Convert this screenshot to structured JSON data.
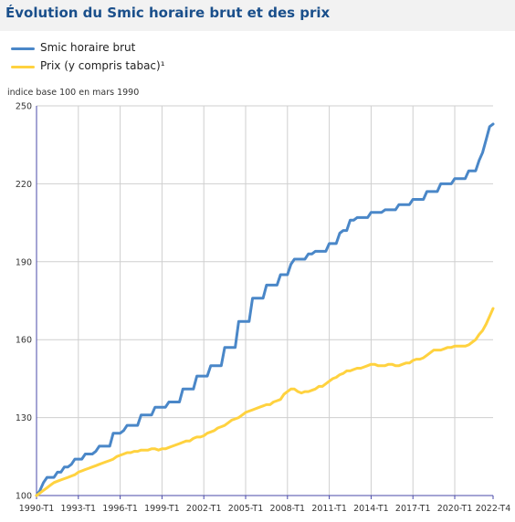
{
  "title": "Évolution du Smic horaire brut et des prix",
  "colors": {
    "smic": "#4a87c8",
    "prix": "#ffd23f",
    "grid": "#cfcfcf",
    "axis": "#4a4aa8"
  },
  "legend": [
    {
      "key": "smic",
      "label": "Smic horaire brut"
    },
    {
      "key": "prix",
      "label": "Prix (y compris tabac)¹"
    }
  ],
  "chart_data": {
    "type": "line",
    "ylabel": "indice base 100 en mars 1990",
    "xlabel": "",
    "grid": true,
    "legend_position": "top-left",
    "ylim": [
      100,
      250
    ],
    "xlim": [
      1990.0,
      2022.75
    ],
    "y_ticks": [
      100,
      130,
      160,
      190,
      220,
      250
    ],
    "x_ticks": [
      {
        "label": "1990-T1",
        "value": 1990.0
      },
      {
        "label": "1993-T1",
        "value": 1993.0
      },
      {
        "label": "1996-T1",
        "value": 1996.0
      },
      {
        "label": "1999-T1",
        "value": 1999.0
      },
      {
        "label": "2002-T1",
        "value": 2002.0
      },
      {
        "label": "2005-T1",
        "value": 2005.0
      },
      {
        "label": "2008-T1",
        "value": 2008.0
      },
      {
        "label": "2011-T1",
        "value": 2011.0
      },
      {
        "label": "2014-T1",
        "value": 2014.0
      },
      {
        "label": "2017-T1",
        "value": 2017.0
      },
      {
        "label": "2020-T1",
        "value": 2020.0
      },
      {
        "label": "2022-T4",
        "value": 2022.75
      }
    ],
    "series": [
      {
        "name": "Smic horaire brut",
        "key": "smic",
        "points": [
          [
            1990.0,
            100
          ],
          [
            1990.25,
            102
          ],
          [
            1990.5,
            105
          ],
          [
            1990.75,
            107
          ],
          [
            1991.0,
            107
          ],
          [
            1991.25,
            107
          ],
          [
            1991.5,
            109
          ],
          [
            1991.75,
            109
          ],
          [
            1992.0,
            111
          ],
          [
            1992.25,
            111
          ],
          [
            1992.5,
            112
          ],
          [
            1992.75,
            114
          ],
          [
            1993.0,
            114
          ],
          [
            1993.25,
            114
          ],
          [
            1993.5,
            116
          ],
          [
            1993.75,
            116
          ],
          [
            1994.0,
            116
          ],
          [
            1994.25,
            117
          ],
          [
            1994.5,
            119
          ],
          [
            1994.75,
            119
          ],
          [
            1995.0,
            119
          ],
          [
            1995.25,
            119
          ],
          [
            1995.5,
            124
          ],
          [
            1995.75,
            124
          ],
          [
            1996.0,
            124
          ],
          [
            1996.25,
            125
          ],
          [
            1996.5,
            127
          ],
          [
            1996.75,
            127
          ],
          [
            1997.0,
            127
          ],
          [
            1997.25,
            127
          ],
          [
            1997.5,
            131
          ],
          [
            1997.75,
            131
          ],
          [
            1998.0,
            131
          ],
          [
            1998.25,
            131
          ],
          [
            1998.5,
            134
          ],
          [
            1998.75,
            134
          ],
          [
            1999.0,
            134
          ],
          [
            1999.25,
            134
          ],
          [
            1999.5,
            136
          ],
          [
            1999.75,
            136
          ],
          [
            2000.0,
            136
          ],
          [
            2000.25,
            136
          ],
          [
            2000.5,
            141
          ],
          [
            2000.75,
            141
          ],
          [
            2001.0,
            141
          ],
          [
            2001.25,
            141
          ],
          [
            2001.5,
            146
          ],
          [
            2001.75,
            146
          ],
          [
            2002.0,
            146
          ],
          [
            2002.25,
            146
          ],
          [
            2002.5,
            150
          ],
          [
            2002.75,
            150
          ],
          [
            2003.0,
            150
          ],
          [
            2003.25,
            150
          ],
          [
            2003.5,
            157
          ],
          [
            2003.75,
            157
          ],
          [
            2004.0,
            157
          ],
          [
            2004.25,
            157
          ],
          [
            2004.5,
            167
          ],
          [
            2004.75,
            167
          ],
          [
            2005.0,
            167
          ],
          [
            2005.25,
            167
          ],
          [
            2005.5,
            176
          ],
          [
            2005.75,
            176
          ],
          [
            2006.0,
            176
          ],
          [
            2006.25,
            176
          ],
          [
            2006.5,
            181
          ],
          [
            2006.75,
            181
          ],
          [
            2007.0,
            181
          ],
          [
            2007.25,
            181
          ],
          [
            2007.5,
            185
          ],
          [
            2007.75,
            185
          ],
          [
            2008.0,
            185
          ],
          [
            2008.25,
            189
          ],
          [
            2008.5,
            191
          ],
          [
            2008.75,
            191
          ],
          [
            2009.0,
            191
          ],
          [
            2009.25,
            191
          ],
          [
            2009.5,
            193
          ],
          [
            2009.75,
            193
          ],
          [
            2010.0,
            194
          ],
          [
            2010.25,
            194
          ],
          [
            2010.5,
            194
          ],
          [
            2010.75,
            194
          ],
          [
            2011.0,
            197
          ],
          [
            2011.25,
            197
          ],
          [
            2011.5,
            197
          ],
          [
            2011.75,
            201
          ],
          [
            2012.0,
            202
          ],
          [
            2012.25,
            202
          ],
          [
            2012.5,
            206
          ],
          [
            2012.75,
            206
          ],
          [
            2013.0,
            207
          ],
          [
            2013.25,
            207
          ],
          [
            2013.5,
            207
          ],
          [
            2013.75,
            207
          ],
          [
            2014.0,
            209
          ],
          [
            2014.25,
            209
          ],
          [
            2014.5,
            209
          ],
          [
            2014.75,
            209
          ],
          [
            2015.0,
            210
          ],
          [
            2015.25,
            210
          ],
          [
            2015.5,
            210
          ],
          [
            2015.75,
            210
          ],
          [
            2016.0,
            212
          ],
          [
            2016.25,
            212
          ],
          [
            2016.5,
            212
          ],
          [
            2016.75,
            212
          ],
          [
            2017.0,
            214
          ],
          [
            2017.25,
            214
          ],
          [
            2017.5,
            214
          ],
          [
            2017.75,
            214
          ],
          [
            2018.0,
            217
          ],
          [
            2018.25,
            217
          ],
          [
            2018.5,
            217
          ],
          [
            2018.75,
            217
          ],
          [
            2019.0,
            220
          ],
          [
            2019.25,
            220
          ],
          [
            2019.5,
            220
          ],
          [
            2019.75,
            220
          ],
          [
            2020.0,
            222
          ],
          [
            2020.25,
            222
          ],
          [
            2020.5,
            222
          ],
          [
            2020.75,
            222
          ],
          [
            2021.0,
            225
          ],
          [
            2021.25,
            225
          ],
          [
            2021.5,
            225
          ],
          [
            2021.75,
            229
          ],
          [
            2022.0,
            232
          ],
          [
            2022.25,
            237
          ],
          [
            2022.5,
            242
          ],
          [
            2022.75,
            243
          ]
        ]
      },
      {
        "name": "Prix (y compris tabac)¹",
        "key": "prix",
        "points": [
          [
            1990.0,
            100
          ],
          [
            1990.25,
            101
          ],
          [
            1990.5,
            102
          ],
          [
            1990.75,
            103
          ],
          [
            1991.0,
            104
          ],
          [
            1991.25,
            105
          ],
          [
            1991.5,
            105.5
          ],
          [
            1991.75,
            106
          ],
          [
            1992.0,
            106.5
          ],
          [
            1992.25,
            107
          ],
          [
            1992.5,
            107.5
          ],
          [
            1992.75,
            108
          ],
          [
            1993.0,
            109
          ],
          [
            1993.25,
            109.5
          ],
          [
            1993.5,
            110
          ],
          [
            1993.75,
            110.5
          ],
          [
            1994.0,
            111
          ],
          [
            1994.25,
            111.5
          ],
          [
            1994.5,
            112
          ],
          [
            1994.75,
            112.5
          ],
          [
            1995.0,
            113
          ],
          [
            1995.25,
            113.5
          ],
          [
            1995.5,
            114
          ],
          [
            1995.75,
            115
          ],
          [
            1996.0,
            115.5
          ],
          [
            1996.25,
            116
          ],
          [
            1996.5,
            116.5
          ],
          [
            1996.75,
            116.5
          ],
          [
            1997.0,
            117
          ],
          [
            1997.25,
            117
          ],
          [
            1997.5,
            117.5
          ],
          [
            1997.75,
            117.5
          ],
          [
            1998.0,
            117.5
          ],
          [
            1998.25,
            118
          ],
          [
            1998.5,
            118
          ],
          [
            1998.75,
            117.5
          ],
          [
            1999.0,
            118
          ],
          [
            1999.25,
            118
          ],
          [
            1999.5,
            118.5
          ],
          [
            1999.75,
            119
          ],
          [
            2000.0,
            119.5
          ],
          [
            2000.25,
            120
          ],
          [
            2000.5,
            120.5
          ],
          [
            2000.75,
            121
          ],
          [
            2001.0,
            121
          ],
          [
            2001.25,
            122
          ],
          [
            2001.5,
            122.5
          ],
          [
            2001.75,
            122.5
          ],
          [
            2002.0,
            123
          ],
          [
            2002.25,
            124
          ],
          [
            2002.5,
            124.5
          ],
          [
            2002.75,
            125
          ],
          [
            2003.0,
            126
          ],
          [
            2003.25,
            126.5
          ],
          [
            2003.5,
            127
          ],
          [
            2003.75,
            128
          ],
          [
            2004.0,
            129
          ],
          [
            2004.25,
            129.5
          ],
          [
            2004.5,
            130
          ],
          [
            2004.75,
            131
          ],
          [
            2005.0,
            132
          ],
          [
            2005.25,
            132.5
          ],
          [
            2005.5,
            133
          ],
          [
            2005.75,
            133.5
          ],
          [
            2006.0,
            134
          ],
          [
            2006.25,
            134.5
          ],
          [
            2006.5,
            135
          ],
          [
            2006.75,
            135
          ],
          [
            2007.0,
            136
          ],
          [
            2007.25,
            136.5
          ],
          [
            2007.5,
            137
          ],
          [
            2007.75,
            139
          ],
          [
            2008.0,
            140
          ],
          [
            2008.25,
            141
          ],
          [
            2008.5,
            141
          ],
          [
            2008.75,
            140
          ],
          [
            2009.0,
            139.5
          ],
          [
            2009.25,
            140
          ],
          [
            2009.5,
            140
          ],
          [
            2009.75,
            140.5
          ],
          [
            2010.0,
            141
          ],
          [
            2010.25,
            142
          ],
          [
            2010.5,
            142
          ],
          [
            2010.75,
            143
          ],
          [
            2011.0,
            144
          ],
          [
            2011.25,
            145
          ],
          [
            2011.5,
            145.5
          ],
          [
            2011.75,
            146.5
          ],
          [
            2012.0,
            147
          ],
          [
            2012.25,
            148
          ],
          [
            2012.5,
            148
          ],
          [
            2012.75,
            148.5
          ],
          [
            2013.0,
            149
          ],
          [
            2013.25,
            149
          ],
          [
            2013.5,
            149.5
          ],
          [
            2013.75,
            150
          ],
          [
            2014.0,
            150.5
          ],
          [
            2014.25,
            150.5
          ],
          [
            2014.5,
            150
          ],
          [
            2014.75,
            150
          ],
          [
            2015.0,
            150
          ],
          [
            2015.25,
            150.5
          ],
          [
            2015.5,
            150.5
          ],
          [
            2015.75,
            150
          ],
          [
            2016.0,
            150
          ],
          [
            2016.25,
            150.5
          ],
          [
            2016.5,
            151
          ],
          [
            2016.75,
            151
          ],
          [
            2017.0,
            152
          ],
          [
            2017.25,
            152.5
          ],
          [
            2017.5,
            152.5
          ],
          [
            2017.75,
            153
          ],
          [
            2018.0,
            154
          ],
          [
            2018.25,
            155
          ],
          [
            2018.5,
            156
          ],
          [
            2018.75,
            156
          ],
          [
            2019.0,
            156
          ],
          [
            2019.25,
            156.5
          ],
          [
            2019.5,
            157
          ],
          [
            2019.75,
            157
          ],
          [
            2020.0,
            157.5
          ],
          [
            2020.25,
            157.5
          ],
          [
            2020.5,
            157.5
          ],
          [
            2020.75,
            157.5
          ],
          [
            2021.0,
            158
          ],
          [
            2021.25,
            159
          ],
          [
            2021.5,
            160
          ],
          [
            2021.75,
            162
          ],
          [
            2022.0,
            163.5
          ],
          [
            2022.25,
            166
          ],
          [
            2022.5,
            169
          ],
          [
            2022.75,
            172
          ]
        ]
      }
    ]
  }
}
